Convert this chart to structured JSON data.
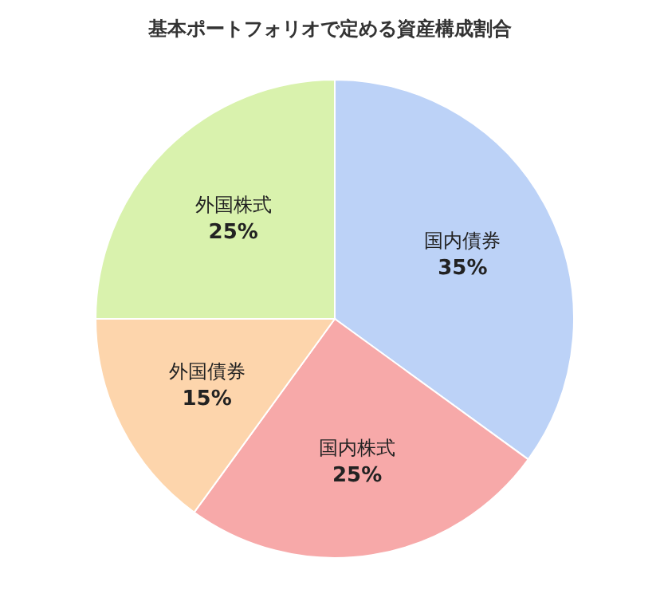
{
  "chart_data": {
    "type": "pie",
    "title": "基本ポートフォリオで定める資産構成割合",
    "categories": [
      "国内債券",
      "国内株式",
      "外国債券",
      "外国株式"
    ],
    "values": [
      35,
      25,
      15,
      25
    ],
    "value_labels": [
      "35%",
      "25%",
      "15%",
      "25%"
    ],
    "colors": [
      "#bcd2f7",
      "#f7a9a9",
      "#fdd5ac",
      "#d9f2ad"
    ]
  }
}
